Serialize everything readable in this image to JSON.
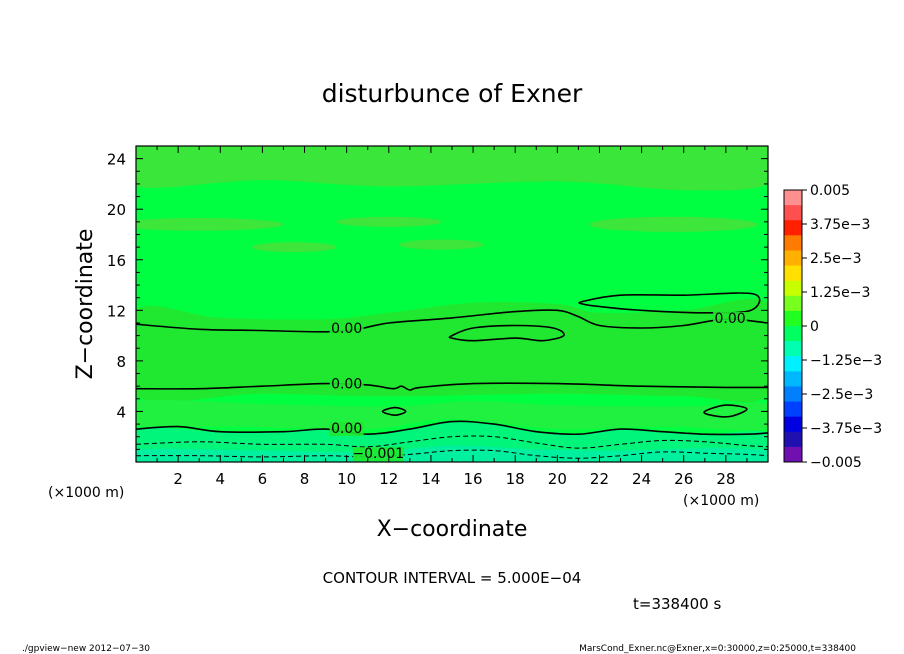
{
  "chart_data": {
    "type": "contour",
    "title": "disturbunce of Exner",
    "xlabel": "X−coordinate",
    "ylabel": "Z−coordinate",
    "x_unit_label": "(×1000 m)",
    "y_unit_label": "(×1000 m)",
    "xlim": [
      0,
      30
    ],
    "ylim": [
      0,
      25
    ],
    "x_ticks": [
      2,
      4,
      6,
      8,
      10,
      12,
      14,
      16,
      18,
      20,
      22,
      24,
      26,
      28
    ],
    "y_ticks": [
      4,
      8,
      12,
      16,
      20,
      24
    ],
    "contour_interval_text": "CONTOUR INTERVAL = 5.000E−04",
    "time_text": "t=338400 s",
    "colorbar": {
      "range": [
        -0.005,
        0.005
      ],
      "labels": [
        "0.005",
        "3.75e−3",
        "2.5e−3",
        "1.25e−3",
        "0",
        "−1.25e−3",
        "−2.5e−3",
        "−3.75e−3",
        "−0.005"
      ],
      "colors": [
        "#ff9090",
        "#ff5050",
        "#ff2000",
        "#ff7a00",
        "#ffb000",
        "#ffe000",
        "#c8ff00",
        "#78ff20",
        "#20ff20",
        "#00ff60",
        "#00ffb0",
        "#00f0ff",
        "#00b8ff",
        "#0080ff",
        "#0040ff",
        "#0000e0",
        "#2010b0",
        "#7010b0"
      ]
    },
    "contour_labels": [
      {
        "text": "0.00",
        "x": 10.0,
        "z": 10.2
      },
      {
        "text": "0.00",
        "x": 28.2,
        "z": 11.0
      },
      {
        "text": "0.00",
        "x": 10.0,
        "z": 5.8
      },
      {
        "text": "0.00",
        "x": 10.0,
        "z": 2.3
      },
      {
        "text": "−0.001",
        "x": 11.5,
        "z": 0.3
      }
    ],
    "contours": [
      {
        "level": 0,
        "dash": false,
        "points": [
          [
            0,
            10.9
          ],
          [
            3,
            10.5
          ],
          [
            6,
            10.4
          ],
          [
            9,
            10.3
          ],
          [
            10.5,
            10.5
          ],
          [
            12,
            11.0
          ],
          [
            15,
            11.4
          ],
          [
            18,
            11.9
          ],
          [
            20,
            12.0
          ],
          [
            21,
            11.5
          ],
          [
            22,
            10.8
          ],
          [
            24,
            10.6
          ],
          [
            26,
            10.8
          ],
          [
            28,
            11.3
          ],
          [
            30,
            11.0
          ]
        ]
      },
      {
        "level": 0,
        "dash": false,
        "closed": true,
        "points": [
          [
            15,
            10.0
          ],
          [
            16,
            10.6
          ],
          [
            18,
            10.8
          ],
          [
            19.8,
            10.6
          ],
          [
            20.3,
            10.0
          ],
          [
            19.3,
            9.6
          ],
          [
            18,
            9.8
          ],
          [
            16,
            9.6
          ],
          [
            15,
            9.8
          ]
        ]
      },
      {
        "level": 0,
        "dash": false,
        "closed": true,
        "points": [
          [
            21.2,
            12.7
          ],
          [
            23,
            13.2
          ],
          [
            26,
            13.2
          ],
          [
            29.3,
            13.3
          ],
          [
            29.2,
            12.0
          ],
          [
            27,
            11.8
          ],
          [
            24,
            12.0
          ],
          [
            22,
            12.3
          ],
          [
            21.2,
            12.5
          ]
        ]
      },
      {
        "level": 0,
        "dash": false,
        "points": [
          [
            0,
            5.8
          ],
          [
            3,
            5.8
          ],
          [
            6,
            6.0
          ],
          [
            9,
            6.2
          ],
          [
            11,
            6.1
          ],
          [
            12.2,
            5.8
          ],
          [
            12.6,
            6.0
          ],
          [
            13,
            5.7
          ],
          [
            13.5,
            5.9
          ],
          [
            16,
            6.2
          ],
          [
            20,
            6.2
          ],
          [
            24,
            6.0
          ],
          [
            28,
            5.9
          ],
          [
            30,
            5.9
          ]
        ]
      },
      {
        "level": 0,
        "dash": false,
        "closed": true,
        "points": [
          [
            11.7,
            4.0
          ],
          [
            12.3,
            4.3
          ],
          [
            12.8,
            4.0
          ],
          [
            12.3,
            3.7
          ]
        ]
      },
      {
        "level": 0,
        "dash": false,
        "closed": true,
        "points": [
          [
            27.0,
            4.0
          ],
          [
            28.0,
            4.5
          ],
          [
            29.0,
            4.2
          ],
          [
            28.2,
            3.6
          ],
          [
            27.3,
            3.7
          ]
        ]
      },
      {
        "level": 0,
        "dash": false,
        "points": [
          [
            0,
            2.6
          ],
          [
            2,
            2.8
          ],
          [
            4,
            2.4
          ],
          [
            7,
            2.4
          ],
          [
            9,
            2.6
          ],
          [
            11,
            2.2
          ],
          [
            13,
            2.6
          ],
          [
            15,
            3.2
          ],
          [
            17,
            3.0
          ],
          [
            19,
            2.4
          ],
          [
            21,
            2.2
          ],
          [
            23,
            2.6
          ],
          [
            25,
            2.4
          ],
          [
            27,
            2.2
          ],
          [
            29,
            2.2
          ],
          [
            30,
            2.3
          ]
        ]
      },
      {
        "level": -0.0005,
        "dash": true,
        "points": [
          [
            0,
            1.4
          ],
          [
            3,
            1.6
          ],
          [
            6,
            1.4
          ],
          [
            9,
            1.4
          ],
          [
            11,
            1.2
          ],
          [
            13,
            1.6
          ],
          [
            15,
            2.0
          ],
          [
            17,
            2.0
          ],
          [
            19,
            1.5
          ],
          [
            21,
            1.1
          ],
          [
            23,
            1.4
          ],
          [
            25,
            1.7
          ],
          [
            27,
            1.6
          ],
          [
            29,
            1.3
          ],
          [
            30,
            1.2
          ]
        ]
      },
      {
        "level": -0.001,
        "dash": true,
        "points": [
          [
            0,
            0.5
          ],
          [
            3,
            0.5
          ],
          [
            6,
            0.4
          ],
          [
            9,
            0.5
          ],
          [
            11,
            0.4
          ],
          [
            13,
            0.6
          ],
          [
            15,
            0.9
          ],
          [
            17,
            0.9
          ],
          [
            19,
            0.5
          ],
          [
            21,
            0.3
          ],
          [
            23,
            0.5
          ],
          [
            25,
            0.8
          ],
          [
            27,
            0.7
          ],
          [
            29,
            0.6
          ],
          [
            30,
            0.5
          ]
        ]
      }
    ],
    "regions": [
      {
        "fill": "#00ff40",
        "points": [
          [
            0,
            25
          ],
          [
            30,
            25
          ],
          [
            30,
            0
          ],
          [
            0,
            0
          ]
        ]
      },
      {
        "fill": "#20e830",
        "points": [
          [
            0,
            12
          ],
          [
            4,
            11.4
          ],
          [
            9,
            11.3
          ],
          [
            12,
            11.8
          ],
          [
            16,
            12.6
          ],
          [
            20,
            12.5
          ],
          [
            22,
            11.8
          ],
          [
            26,
            12.0
          ],
          [
            30,
            12.5
          ],
          [
            30,
            5.3
          ],
          [
            26,
            5.2
          ],
          [
            20,
            5.4
          ],
          [
            12,
            5.2
          ],
          [
            6,
            5.4
          ],
          [
            0,
            5.2
          ]
        ]
      },
      {
        "fill": "#3ae63a",
        "points": [
          [
            0,
            25
          ],
          [
            30,
            25
          ],
          [
            30,
            22
          ],
          [
            26,
            21.5
          ],
          [
            20,
            22.2
          ],
          [
            12,
            21.8
          ],
          [
            6,
            22.3
          ],
          [
            0,
            21.8
          ]
        ]
      },
      {
        "fill": "#20f040",
        "points": [
          [
            0,
            4.8
          ],
          [
            6,
            4.6
          ],
          [
            12,
            4.4
          ],
          [
            16,
            4.8
          ],
          [
            20,
            4.5
          ],
          [
            26,
            4.4
          ],
          [
            30,
            4.6
          ],
          [
            30,
            2.6
          ],
          [
            25,
            2.8
          ],
          [
            20,
            2.6
          ],
          [
            15,
            3.4
          ],
          [
            11,
            2.6
          ],
          [
            5,
            2.8
          ],
          [
            0,
            2.9
          ]
        ]
      },
      {
        "fill": "#00f57a",
        "points": [
          [
            0,
            2.6
          ],
          [
            4,
            2.4
          ],
          [
            7,
            2.4
          ],
          [
            9,
            2.6
          ],
          [
            11,
            2.2
          ],
          [
            13,
            2.6
          ],
          [
            15,
            3.2
          ],
          [
            17,
            3.0
          ],
          [
            19,
            2.4
          ],
          [
            21,
            2.2
          ],
          [
            23,
            2.6
          ],
          [
            25,
            2.4
          ],
          [
            27,
            2.2
          ],
          [
            30,
            2.3
          ],
          [
            30,
            0
          ],
          [
            0,
            0
          ]
        ]
      },
      {
        "fill": "#00f0a0",
        "points": [
          [
            0,
            1.0
          ],
          [
            6,
            0.9
          ],
          [
            11,
            0.8
          ],
          [
            15,
            1.3
          ],
          [
            19,
            1.0
          ],
          [
            23,
            0.9
          ],
          [
            27,
            1.1
          ],
          [
            30,
            0.9
          ],
          [
            30,
            0
          ],
          [
            0,
            0
          ]
        ]
      }
    ],
    "blobs": [
      {
        "fill": "#3ee53a",
        "cx": 3,
        "cz": 18.8,
        "rx": 4,
        "rz": 0.5
      },
      {
        "fill": "#3ee53a",
        "cx": 12,
        "cz": 19,
        "rx": 2.5,
        "rz": 0.4
      },
      {
        "fill": "#3ee53a",
        "cx": 25.5,
        "cz": 18.8,
        "rx": 4,
        "rz": 0.6
      },
      {
        "fill": "#3ee53a",
        "cx": 14.5,
        "cz": 17.2,
        "rx": 2,
        "rz": 0.4
      },
      {
        "fill": "#3ee53a",
        "cx": 7.5,
        "cz": 17,
        "rx": 2,
        "rz": 0.4
      }
    ]
  },
  "footer": {
    "left": "./gpview−new   2012−07−30",
    "right": "MarsCond_Exner.nc@Exner,x=0:30000,z=0:25000,t=338400"
  }
}
